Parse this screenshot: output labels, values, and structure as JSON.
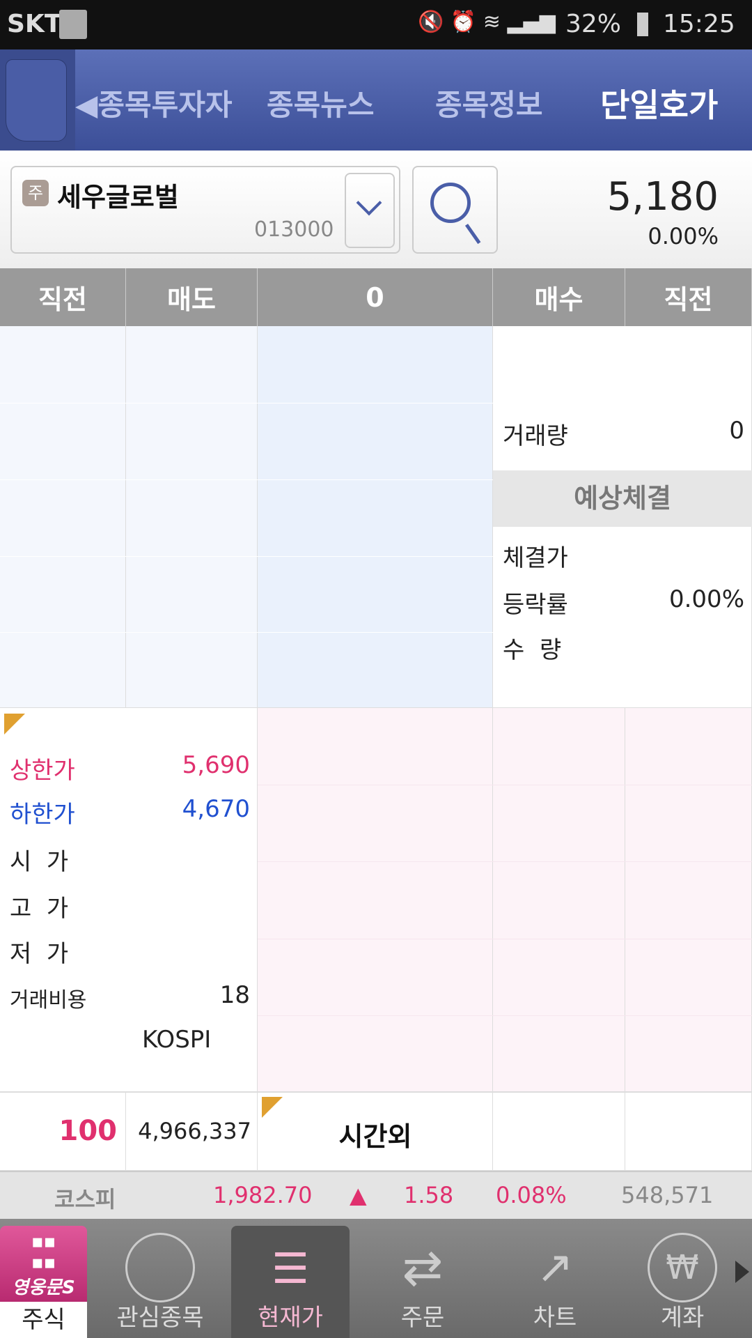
{
  "status_bar": {
    "carrier": "SKT",
    "battery": "32%",
    "time": "15:25"
  },
  "header": {
    "tabs": [
      {
        "label": "종목투자자"
      },
      {
        "label": "종목뉴스"
      },
      {
        "label": "종목정보"
      },
      {
        "label": "단일호가",
        "active": true
      }
    ]
  },
  "stock": {
    "badge": "주",
    "name": "세우글로벌",
    "code": "013000",
    "price": "5,180",
    "change_pct": "0.00%"
  },
  "table_header": {
    "col1": "직전",
    "col2": "매도",
    "col3": "0",
    "col4": "매수",
    "col5": "직전"
  },
  "info_right": {
    "volume_label": "거래량",
    "volume_value": "0",
    "expected_title": "예상체결",
    "exec_price_label": "체결가",
    "rate_label": "등락률",
    "rate_value": "0.00%",
    "qty_label": "수  량"
  },
  "info_left": {
    "upper_limit_label": "상한가",
    "upper_limit_value": "5,690",
    "lower_limit_label": "하한가",
    "lower_limit_value": "4,670",
    "open_label": "시  가",
    "high_label": "고  가",
    "low_label": "저  가",
    "cost_label": "거래비용",
    "cost_value": "18",
    "market": "KOSPI"
  },
  "bottom_row": {
    "sell_total": "100",
    "buy_total": "4,966,337",
    "session": "시간외"
  },
  "kospi_bar": {
    "label": "코스피",
    "index": "1,982.70",
    "arrow": "▲",
    "change": "1.58",
    "change_pct": "0.08%",
    "volume": "548,571"
  },
  "nav": {
    "items": [
      {
        "label": "주식",
        "logo": "영웅문S"
      },
      {
        "label": "관심종목"
      },
      {
        "label": "현재가",
        "active": true
      },
      {
        "label": "주문"
      },
      {
        "label": "차트"
      },
      {
        "label": "계좌"
      }
    ]
  },
  "colors": {
    "up": "#e0306e",
    "down": "#2050d0",
    "header": "#4a5ea8"
  }
}
